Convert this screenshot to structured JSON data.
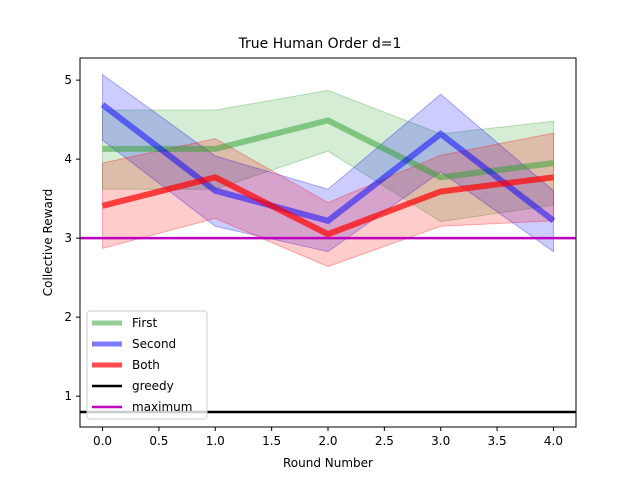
{
  "chart_data": {
    "type": "line",
    "title": "True Human Order d=1",
    "xlabel": "Round Number",
    "ylabel": "Collective Reward",
    "x": [
      0,
      1,
      2,
      3,
      4
    ],
    "xlim": [
      -0.2,
      4.2
    ],
    "ylim": [
      0.61,
      5.28
    ],
    "xticks": [
      0.0,
      0.5,
      1.0,
      1.5,
      2.0,
      2.5,
      3.0,
      3.5,
      4.0
    ],
    "xtick_labels": [
      "0.0",
      "0.5",
      "1.0",
      "1.5",
      "2.0",
      "2.5",
      "3.0",
      "3.5",
      "4.0"
    ],
    "yticks": [
      1,
      2,
      3,
      4,
      5
    ],
    "ytick_labels": [
      "1",
      "2",
      "3",
      "4",
      "5"
    ],
    "grid": false,
    "legend_position": "lower-left",
    "series": [
      {
        "name": "First",
        "color": "#2ca02c",
        "values": [
          4.13,
          4.13,
          4.49,
          3.77,
          3.95
        ],
        "upper": [
          4.62,
          4.62,
          4.87,
          4.32,
          4.48
        ],
        "lower": [
          3.62,
          3.62,
          4.1,
          3.21,
          3.42
        ]
      },
      {
        "name": "Second",
        "color": "#0000ff",
        "values": [
          4.69,
          3.6,
          3.22,
          4.32,
          3.22
        ],
        "upper": [
          5.07,
          4.04,
          3.62,
          4.82,
          3.6
        ],
        "lower": [
          4.24,
          3.15,
          2.83,
          3.84,
          2.83
        ]
      },
      {
        "name": "Both",
        "color": "#ff0000",
        "values": [
          3.41,
          3.77,
          3.05,
          3.59,
          3.77
        ],
        "upper": [
          3.95,
          4.26,
          3.45,
          4.05,
          4.33
        ],
        "lower": [
          2.87,
          3.25,
          2.64,
          3.15,
          3.22
        ]
      }
    ],
    "reference_lines": [
      {
        "name": "greedy",
        "color": "#000000",
        "y": 0.8
      },
      {
        "name": "maximum",
        "color": "#bf00bf",
        "y": 3.0
      }
    ]
  }
}
